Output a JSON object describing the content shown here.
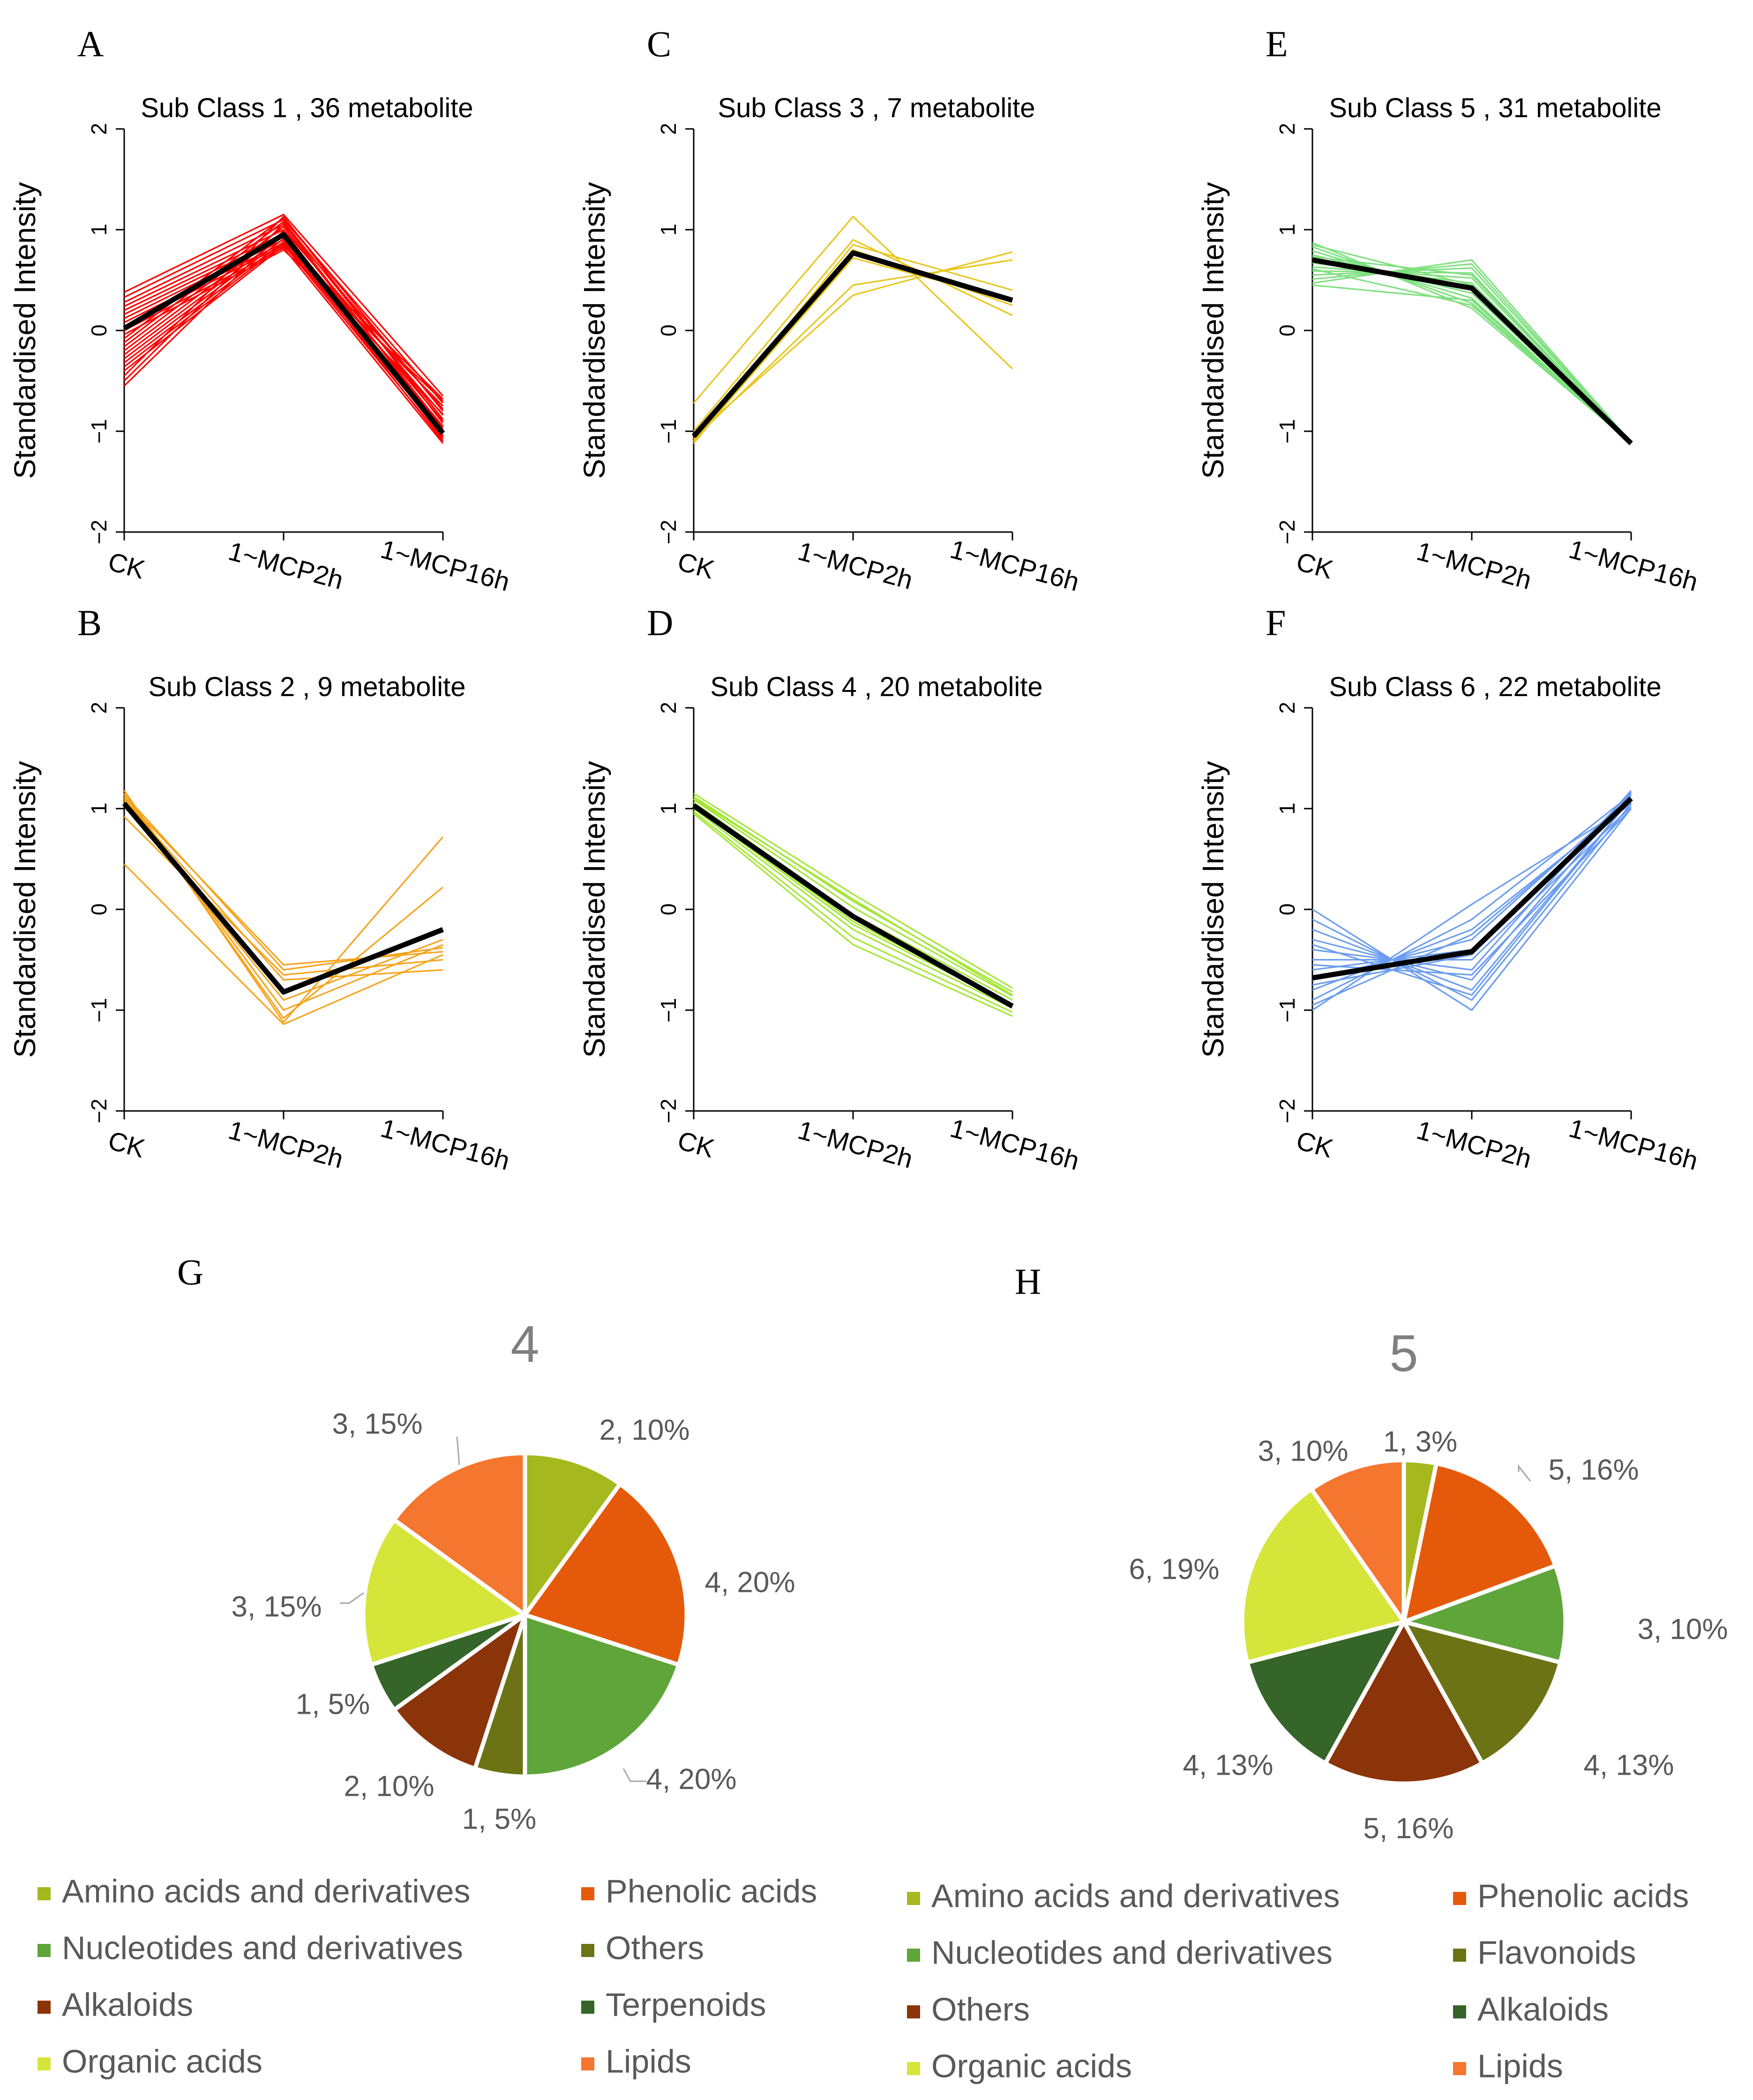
{
  "line_panels": [
    {
      "letter": "A",
      "title": "Sub Class  1  , 36 metabolite",
      "ylabel": "Standardised Intensity",
      "color": "#ff0000"
    },
    {
      "letter": "C",
      "title": "Sub Class  3  , 7 metabolite",
      "ylabel": "Standardised Intensity",
      "color": "#e8c61c"
    },
    {
      "letter": "E",
      "title": "Sub Class  5  , 31 metabolite",
      "ylabel": "Standardised Intensity",
      "color": "#7fe07f"
    },
    {
      "letter": "B",
      "title": "Sub Class  2  , 9 metabolite",
      "ylabel": "Standardised Intensity",
      "color": "#f5a31c"
    },
    {
      "letter": "D",
      "title": "Sub Class  4  , 20 metabolite",
      "ylabel": "Standardised Intensity",
      "color": "#a3e635"
    },
    {
      "letter": "F",
      "title": "Sub Class  6  , 22 metabolite",
      "ylabel": "Standardised Intensity",
      "color": "#6b9cf0"
    }
  ],
  "pie_panels": [
    {
      "letter": "G",
      "title": "4"
    },
    {
      "letter": "H",
      "title": "5"
    }
  ],
  "chart_data": [
    {
      "type": "line",
      "panel": "A",
      "title": "Sub Class  1  , 36 metabolite",
      "xlabel": "",
      "ylabel": "Standardised Intensity",
      "categories": [
        "CK",
        "1-MCP2h",
        "1-MCP16h"
      ],
      "yticks": [
        "-2",
        "-1",
        "0",
        "1",
        "2"
      ],
      "ylim": [
        -2,
        2
      ],
      "mean": [
        0.02,
        0.95,
        -1.02
      ],
      "series_ck": [
        0.38,
        0.33,
        0.28,
        0.24,
        0.2,
        0.16,
        0.12,
        0.08,
        0.04,
        0.0,
        -0.04,
        -0.08,
        -0.12,
        -0.16,
        -0.2,
        -0.24,
        -0.28,
        -0.32,
        -0.36,
        -0.4,
        -0.45,
        -0.5,
        -0.55
      ],
      "series_mcp2h": [
        1.15,
        1.1,
        1.05,
        1.0,
        0.96,
        0.93,
        0.9,
        0.87,
        0.85,
        0.82,
        0.8,
        1.12,
        1.08,
        1.03,
        0.98,
        0.94,
        0.91,
        0.88,
        0.86,
        0.84,
        1.13,
        1.06,
        0.99
      ],
      "series_mcp16h": [
        -0.65,
        -0.72,
        -0.78,
        -0.84,
        -0.9,
        -0.95,
        -1.0,
        -1.04,
        -1.08,
        -1.12,
        -0.7,
        -0.8,
        -0.88,
        -0.96,
        -1.02,
        -1.06,
        -1.1,
        -0.68,
        -0.75,
        -0.83,
        -0.92,
        -0.98,
        -1.05
      ]
    },
    {
      "type": "line",
      "panel": "C",
      "title": "Sub Class  3  , 7 metabolite",
      "xlabel": "",
      "ylabel": "Standardised Intensity",
      "categories": [
        "CK",
        "1-MCP2h",
        "1-MCP16h"
      ],
      "yticks": [
        "-2",
        "-1",
        "0",
        "1",
        "2"
      ],
      "ylim": [
        -2,
        2
      ],
      "mean": [
        -1.05,
        0.77,
        0.3
      ],
      "series_ck": [
        -0.72,
        -1.0,
        -1.05,
        -1.08,
        -1.1,
        -1.12,
        -1.1
      ],
      "series_mcp2h": [
        1.13,
        0.9,
        0.35,
        0.45,
        0.72,
        0.8,
        0.85
      ],
      "series_mcp16h": [
        -0.38,
        0.15,
        0.78,
        0.7,
        0.3,
        0.25,
        0.4
      ]
    },
    {
      "type": "line",
      "panel": "E",
      "title": "Sub Class  5  , 31 metabolite",
      "xlabel": "",
      "ylabel": "Standardised Intensity",
      "categories": [
        "CK",
        "1-MCP2h",
        "1-MCP16h"
      ],
      "yticks": [
        "-2",
        "-1",
        "0",
        "1",
        "2"
      ],
      "ylim": [
        -2,
        2
      ],
      "mean": [
        0.7,
        0.42,
        -1.12
      ],
      "series_ck": [
        0.87,
        0.83,
        0.79,
        0.75,
        0.71,
        0.67,
        0.63,
        0.59,
        0.55,
        0.51,
        0.47,
        0.45,
        0.85,
        0.73,
        0.61
      ],
      "series_mcp2h": [
        0.22,
        0.27,
        0.32,
        0.37,
        0.42,
        0.47,
        0.52,
        0.57,
        0.62,
        0.66,
        0.7,
        0.3,
        0.45,
        0.55,
        0.25
      ],
      "series_mcp16h": [
        -1.12,
        -1.12,
        -1.13,
        -1.13,
        -1.12,
        -1.11,
        -1.12,
        -1.13,
        -1.12,
        -1.12,
        -1.11,
        -1.13,
        -1.12,
        -1.12,
        -1.12
      ]
    },
    {
      "type": "line",
      "panel": "B",
      "title": "Sub Class  2  , 9 metabolite",
      "xlabel": "",
      "ylabel": "Standardised Intensity",
      "categories": [
        "CK",
        "1-MCP2h",
        "1-MCP16h"
      ],
      "yticks": [
        "-2",
        "-1",
        "0",
        "1",
        "2"
      ],
      "ylim": [
        -2,
        2
      ],
      "mean": [
        1.05,
        -0.82,
        -0.2
      ],
      "series_ck": [
        1.18,
        1.15,
        1.12,
        1.1,
        1.08,
        1.05,
        0.92,
        0.45,
        1.14
      ],
      "series_mcp2h": [
        -1.12,
        -1.08,
        -1.0,
        -0.55,
        -0.7,
        -0.9,
        -0.65,
        -1.14,
        -0.6
      ],
      "series_mcp16h": [
        0.72,
        0.22,
        -0.35,
        -0.42,
        -0.6,
        -0.3,
        -0.5,
        -0.45,
        -0.38
      ]
    },
    {
      "type": "line",
      "panel": "D",
      "title": "Sub Class  4  , 20 metabolite",
      "xlabel": "",
      "ylabel": "Standardised Intensity",
      "categories": [
        "CK",
        "1-MCP2h",
        "1-MCP16h"
      ],
      "yticks": [
        "-2",
        "-1",
        "0",
        "1",
        "2"
      ],
      "ylim": [
        -2,
        2
      ],
      "mean": [
        1.03,
        -0.07,
        -0.96
      ],
      "series_ck": [
        1.15,
        1.12,
        1.09,
        1.06,
        1.03,
        1.0,
        0.97,
        0.95,
        1.1,
        1.02
      ],
      "series_mcp2h": [
        0.15,
        0.08,
        0.02,
        -0.05,
        -0.12,
        -0.2,
        -0.28,
        -0.35,
        0.1,
        -0.15
      ],
      "series_mcp16h": [
        -0.78,
        -0.82,
        -0.86,
        -0.9,
        -0.94,
        -0.98,
        -1.02,
        -1.06,
        -0.85,
        -0.95
      ]
    },
    {
      "type": "line",
      "panel": "F",
      "title": "Sub Class  6  , 22 metabolite",
      "xlabel": "",
      "ylabel": "Standardised Intensity",
      "categories": [
        "CK",
        "1-MCP2h",
        "1-MCP16h"
      ],
      "yticks": [
        "-2",
        "-1",
        "0",
        "1",
        "2"
      ],
      "ylim": [
        -2,
        2
      ],
      "mean": [
        -0.68,
        -0.42,
        1.1
      ],
      "series_ck": [
        0.0,
        -0.1,
        -0.2,
        -0.3,
        -0.4,
        -0.5,
        -0.6,
        -0.7,
        -0.8,
        -0.9,
        -1.0,
        -0.35,
        -0.55,
        -0.75,
        -0.95
      ],
      "series_mcp2h": [
        -1.0,
        -0.9,
        -0.8,
        -0.7,
        -0.6,
        -0.5,
        -0.4,
        -0.3,
        -0.2,
        -0.1,
        0.05,
        -0.85,
        -0.65,
        -0.45,
        -0.25
      ],
      "series_mcp16h": [
        1.0,
        1.05,
        1.1,
        1.15,
        1.18,
        1.02,
        1.08,
        1.12,
        1.06,
        1.14,
        1.04,
        1.1,
        1.0,
        1.16,
        1.09
      ]
    },
    {
      "type": "pie",
      "panel": "G",
      "title": "4",
      "slices": [
        {
          "name": "Amino acids and derivatives",
          "value": 2,
          "label": "2, 10%",
          "color": "#a5b81e"
        },
        {
          "name": "Phenolic acids",
          "value": 4,
          "label": "4, 20%",
          "color": "#e55a0a"
        },
        {
          "name": "Nucleotides and derivatives",
          "value": 4,
          "label": "4, 20%",
          "color": "#5fa53a"
        },
        {
          "name": "Others",
          "value": 1,
          "label": "1, 5%",
          "color": "#6b7315"
        },
        {
          "name": "Alkaloids",
          "value": 2,
          "label": "2, 10%",
          "color": "#8b3409"
        },
        {
          "name": "Terpenoids",
          "value": 1,
          "label": "1, 5%",
          "color": "#356528"
        },
        {
          "name": "Organic acids",
          "value": 3,
          "label": "3, 15%",
          "color": "#d5e53a"
        },
        {
          "name": "Lipids",
          "value": 3,
          "label": "3, 15%",
          "color": "#f5762e"
        }
      ],
      "legend": [
        "Amino acids and derivatives",
        "Phenolic acids",
        "Nucleotides and derivatives",
        "Others",
        "Alkaloids",
        "Terpenoids",
        "Organic acids",
        "Lipids"
      ]
    },
    {
      "type": "pie",
      "panel": "H",
      "title": "5",
      "slices": [
        {
          "name": "Amino acids and derivatives",
          "value": 1,
          "label": "1, 3%",
          "color": "#a5b81e"
        },
        {
          "name": "Phenolic acids",
          "value": 5,
          "label": "5, 16%",
          "color": "#e55a0a"
        },
        {
          "name": "Nucleotides and derivatives",
          "value": 3,
          "label": "3, 10%",
          "color": "#5fa53a"
        },
        {
          "name": "Flavonoids",
          "value": 4,
          "label": "4, 13%",
          "color": "#6b7315"
        },
        {
          "name": "Others",
          "value": 5,
          "label": "5, 16%",
          "color": "#8b3409"
        },
        {
          "name": "Alkaloids",
          "value": 4,
          "label": "4, 13%",
          "color": "#356528"
        },
        {
          "name": "Organic acids",
          "value": 6,
          "label": "6, 19%",
          "color": "#d5e53a"
        },
        {
          "name": "Lipids",
          "value": 3,
          "label": "3, 10%",
          "color": "#f5762e"
        }
      ],
      "legend": [
        "Amino acids and derivatives",
        "Phenolic acids",
        "Nucleotides and derivatives",
        "Flavonoids",
        "Others",
        "Alkaloids",
        "Organic acids",
        "Lipids"
      ]
    }
  ]
}
